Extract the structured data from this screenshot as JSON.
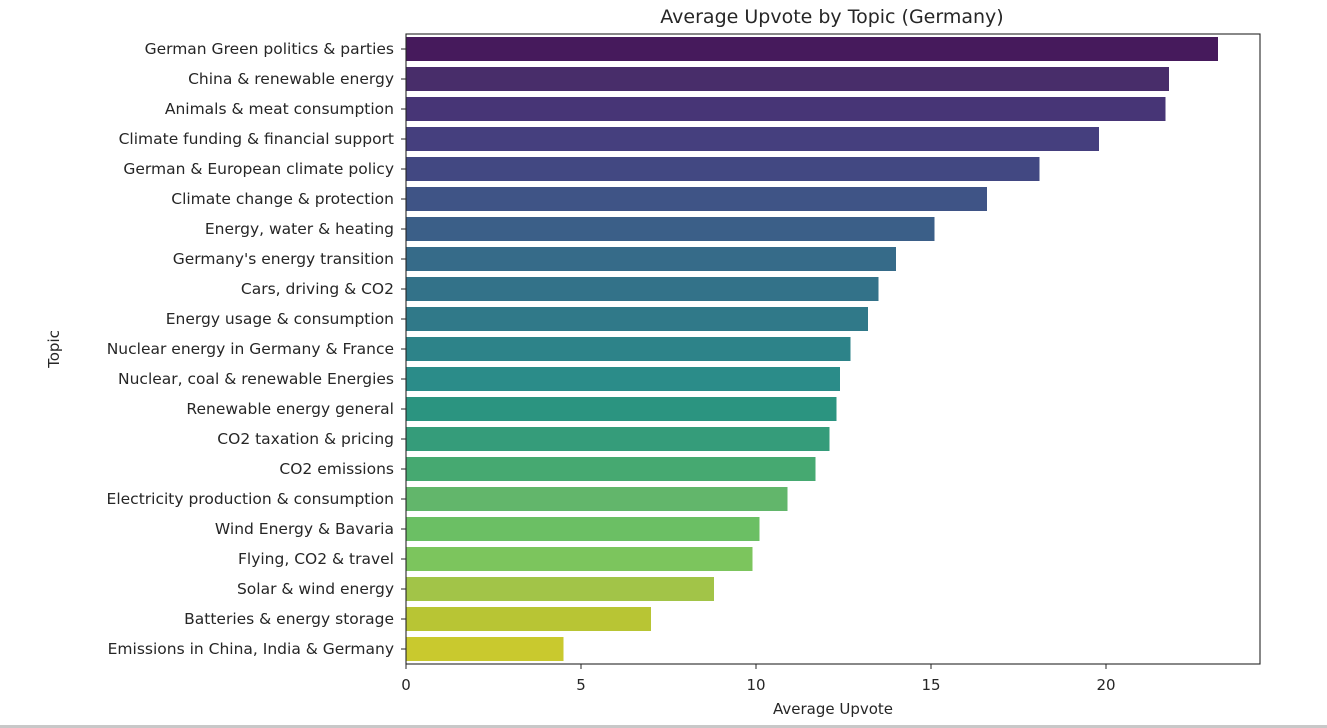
{
  "chart_data": {
    "type": "bar",
    "orientation": "horizontal",
    "title": "Average Upvote by Topic (Germany)",
    "xlabel": "Average Upvote",
    "ylabel": "Topic",
    "xlim": [
      0,
      24.4
    ],
    "xticks": [
      0,
      5,
      10,
      15,
      20
    ],
    "grid": false,
    "legend": "none",
    "categories": [
      "German Green politics & parties",
      "China & renewable energy",
      "Animals & meat consumption",
      "Climate funding & financial support",
      "German & European climate policy",
      "Climate change & protection",
      "Energy, water & heating",
      "Germany's energy transition",
      "Cars, driving & CO2",
      "Energy usage & consumption",
      "Nuclear energy in Germany & France",
      "Nuclear, coal & renewable Energies",
      "Renewable energy general",
      "CO2 taxation & pricing",
      "CO2 emissions",
      "Electricity production & consumption",
      "Wind Energy & Bavaria",
      "Flying, CO2 & travel",
      "Solar & wind energy",
      "Batteries & energy storage",
      "Emissions in China, India & Germany"
    ],
    "values": [
      23.2,
      21.8,
      21.7,
      19.8,
      18.1,
      16.6,
      15.1,
      14.0,
      13.5,
      13.2,
      12.7,
      12.4,
      12.3,
      12.1,
      11.7,
      10.9,
      10.1,
      9.9,
      8.8,
      7.0,
      4.5
    ],
    "colors": [
      "#461a5c",
      "#482d6a",
      "#473576",
      "#453f7e",
      "#424882",
      "#3f5486",
      "#3b5f88",
      "#366b89",
      "#337289",
      "#307989",
      "#2d8389",
      "#2b8c89",
      "#2b9480",
      "#359c7a",
      "#46a971",
      "#62b66b",
      "#6bbf64",
      "#7cc55d",
      "#a2c448",
      "#b8c534",
      "#c9c92e"
    ]
  }
}
